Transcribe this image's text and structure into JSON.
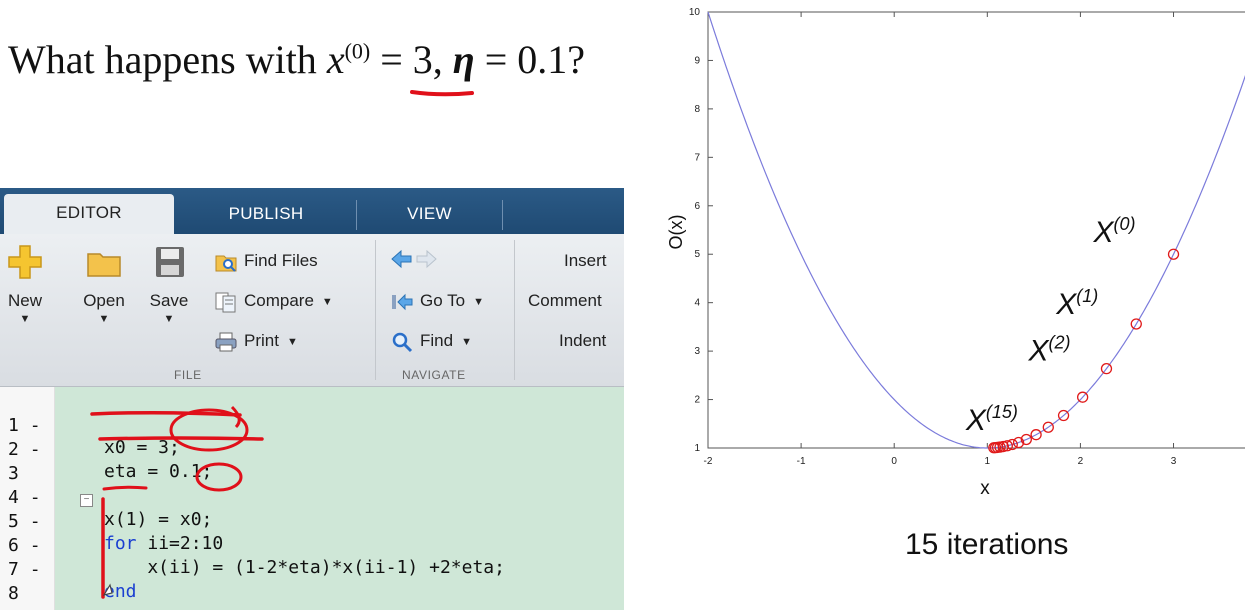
{
  "headline": {
    "prefix": "What happens with ",
    "variable": "x",
    "superscript": "(0)",
    "assign": " = 3,",
    "eta_symbol": "η",
    "eta_assign": " = 0.1?"
  },
  "editor": {
    "tabs": [
      {
        "label": "EDITOR",
        "active": true
      },
      {
        "label": "PUBLISH",
        "active": false
      },
      {
        "label": "VIEW",
        "active": false
      }
    ],
    "file_group": {
      "label": "FILE",
      "new_label": "New",
      "open_label": "Open",
      "save_label": "Save",
      "find_files_label": "Find Files",
      "compare_label": "Compare",
      "print_label": "Print"
    },
    "navigate_group": {
      "label": "NAVIGATE",
      "go_to_label": "Go To",
      "find_label": "Find"
    },
    "edit_group": {
      "insert_label": "Insert",
      "comment_label": "Comment",
      "indent_label": "Indent"
    },
    "code_lines": [
      {
        "number": "1",
        "marker": "-",
        "text": "x0 = 3;"
      },
      {
        "number": "2",
        "marker": "-",
        "text": "eta = 0.1;"
      },
      {
        "number": "3",
        "marker": "",
        "text": ""
      },
      {
        "number": "4",
        "marker": "-",
        "text": "x(1) = x0;"
      },
      {
        "number": "5",
        "marker": "-",
        "keyword": "for",
        "text": " ii=2:10"
      },
      {
        "number": "6",
        "marker": "-",
        "text": "    x(ii) = (1-2*eta)*x(ii-1) +2*eta;"
      },
      {
        "number": "7",
        "marker": "-",
        "keyword": "end",
        "text": ""
      },
      {
        "number": "8",
        "marker": "",
        "text": ""
      }
    ],
    "colors": {
      "tab_bar": "#1f4a73",
      "code_background": "#cfe7d7",
      "keyword": "#1a3fd1",
      "annotation": "#e0101a"
    }
  },
  "chart_data": {
    "type": "line",
    "title": "",
    "xlabel": "x",
    "ylabel": "O(x)",
    "xlim": [
      -2,
      3.8
    ],
    "ylim": [
      1,
      10
    ],
    "xticks": [
      -2,
      -1,
      0,
      1,
      2,
      3
    ],
    "yticks": [
      1,
      2,
      3,
      4,
      5,
      6,
      7,
      8,
      9,
      10
    ],
    "curve": {
      "function": "(x-1)^2+1",
      "color": "#7b7bdb"
    },
    "iterates": {
      "color": "#e01a1a",
      "x": [
        3.0,
        2.6,
        2.28,
        2.024,
        1.819,
        1.655,
        1.524,
        1.419,
        1.336,
        1.268,
        1.215,
        1.172,
        1.137,
        1.11,
        1.088,
        1.07
      ],
      "y": [
        5.0,
        3.56,
        2.638,
        2.049,
        1.671,
        1.429,
        1.275,
        1.176,
        1.113,
        1.072,
        1.046,
        1.03,
        1.019,
        1.012,
        1.008,
        1.005
      ]
    },
    "annotations": [
      {
        "label": "X",
        "sup": "(0)",
        "x": 3.0,
        "y": 5.0
      },
      {
        "label": "X",
        "sup": "(1)",
        "x": 2.6,
        "y": 3.56
      },
      {
        "label": "X",
        "sup": "(2)",
        "x": 2.28,
        "y": 2.638
      },
      {
        "label": "X",
        "sup": "(15)",
        "x": 1.07,
        "y": 1.005
      }
    ]
  },
  "caption": "15 iterations"
}
